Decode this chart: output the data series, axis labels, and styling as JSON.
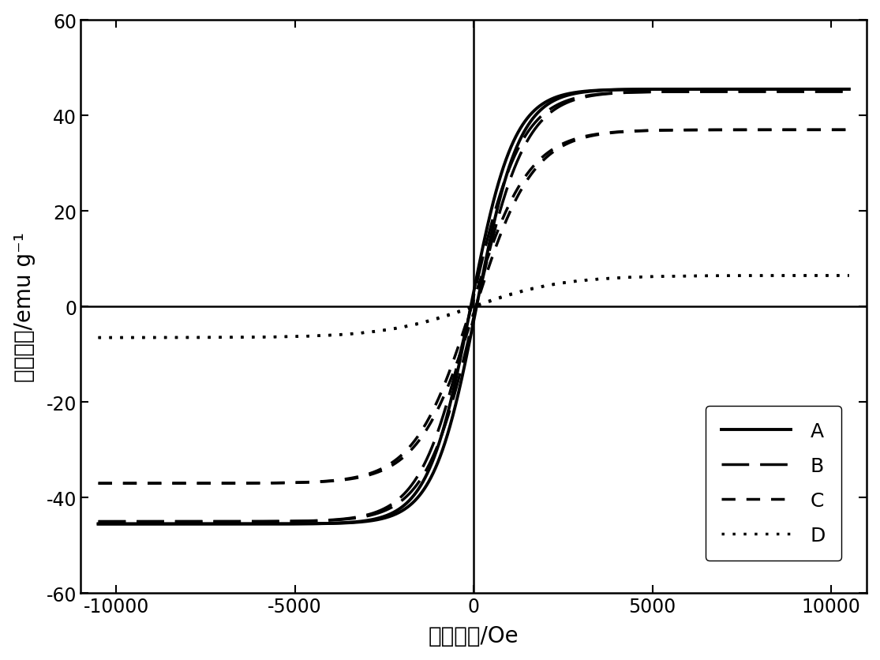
{
  "title": "",
  "xlabel": "磁场强度/Oe",
  "ylabel": "磁化强度/emu g⁻¹",
  "xlim": [
    -11000,
    11000
  ],
  "ylim": [
    -60,
    60
  ],
  "xticks": [
    -10000,
    -5000,
    0,
    5000,
    10000
  ],
  "yticks": [
    -60,
    -40,
    -20,
    0,
    20,
    40,
    60
  ],
  "color": "#000000",
  "background_color": "#ffffff",
  "legend_fontsize": 18,
  "axis_fontsize": 20,
  "tick_fontsize": 17,
  "series": [
    {
      "label": "A",
      "Ms": 45.5,
      "alpha": 1200,
      "Hc": 80,
      "lw": 2.8,
      "ls": "solid"
    },
    {
      "label": "B",
      "Ms": 45.0,
      "alpha": 1400,
      "Hc": 70,
      "lw": 2.5,
      "ls": "dashed_long"
    },
    {
      "label": "C",
      "Ms": 37.0,
      "alpha": 1600,
      "Hc": 60,
      "lw": 2.5,
      "ls": "dashed_med"
    },
    {
      "label": "D",
      "Ms": 6.5,
      "alpha": 2500,
      "Hc": 30,
      "lw": 2.5,
      "ls": "dotted"
    }
  ]
}
